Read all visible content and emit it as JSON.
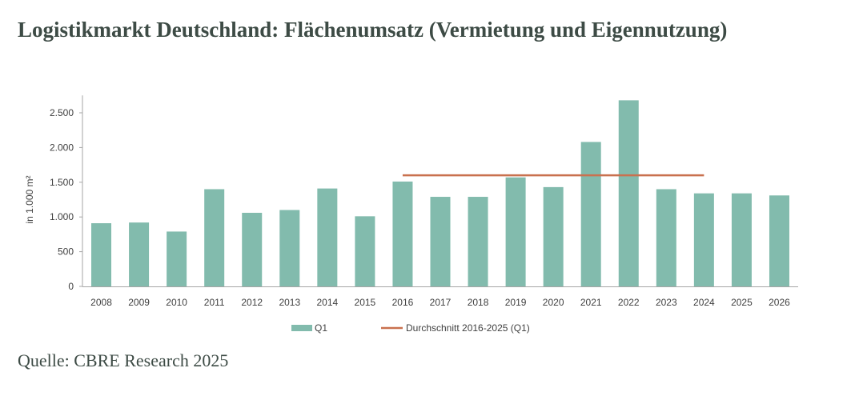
{
  "header": {
    "title": "Logistikmarkt Deutschland: Flächenumsatz (Vermietung und Eigennutzung)"
  },
  "footer": {
    "source": "Quelle: CBRE Research 2025"
  },
  "colors": {
    "bar": "#82bbad",
    "average_line": "#c9714f",
    "axis": "#a6a6a6",
    "text": "#404040",
    "title": "#3d4b45"
  },
  "chart_data": {
    "type": "bar",
    "title": "",
    "xlabel": "",
    "ylabel": "in 1.000 m²",
    "ylim": [
      0,
      2750
    ],
    "yticks": [
      0,
      500,
      1000,
      1500,
      2000,
      2500
    ],
    "ytick_labels": [
      "0",
      "500",
      "1.000",
      "1.500",
      "2.000",
      "2.500"
    ],
    "grid": false,
    "legend_position": "bottom",
    "categories": [
      "2008",
      "2009",
      "2010",
      "2011",
      "2012",
      "2013",
      "2014",
      "2015",
      "2016",
      "2017",
      "2018",
      "2019",
      "2020",
      "2021",
      "2022",
      "2023",
      "2024",
      "2025",
      "2026"
    ],
    "series": [
      {
        "name": "Q1",
        "type": "bar",
        "values": [
          910,
          920,
          790,
          1400,
          1060,
          1100,
          1410,
          1010,
          1510,
          1290,
          1290,
          1570,
          1430,
          2080,
          2680,
          1400,
          1340,
          1340,
          1310
        ]
      },
      {
        "name": "Durchschnitt 2016-2025 (Q1)",
        "type": "line",
        "value": 1600,
        "x_start": "2016",
        "x_end": "2024"
      }
    ]
  }
}
